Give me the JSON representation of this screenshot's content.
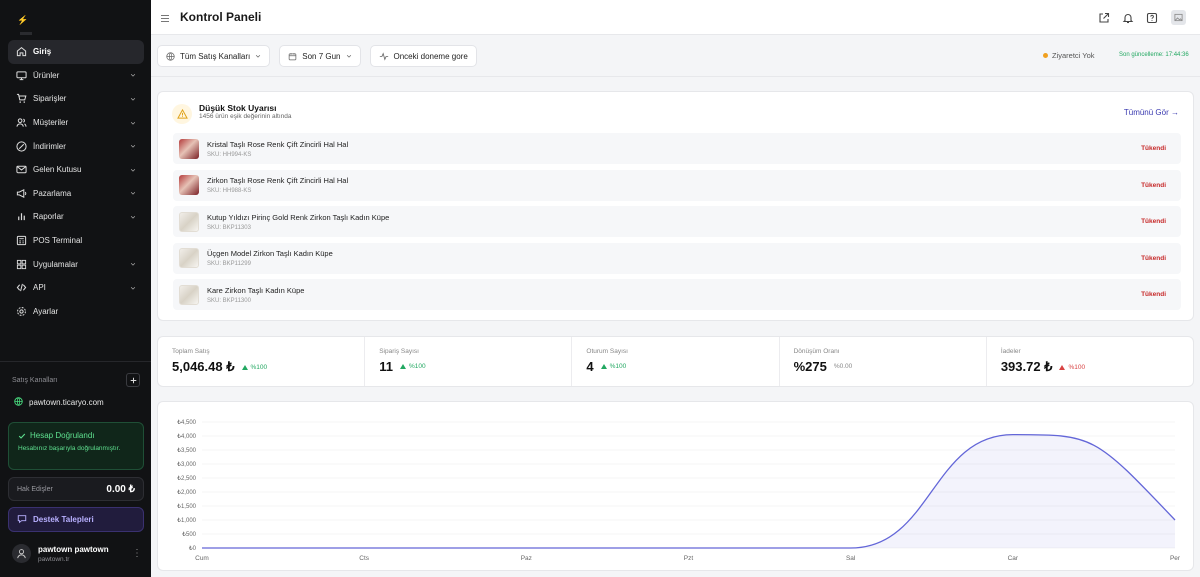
{
  "sidebar": {
    "nav": [
      {
        "label": "Giriş",
        "icon": "home-icon",
        "active": true,
        "chevron": false
      },
      {
        "label": "Ürünler",
        "icon": "monitor-icon",
        "chevron": true
      },
      {
        "label": "Siparişler",
        "icon": "cart-icon",
        "chevron": true
      },
      {
        "label": "Müşteriler",
        "icon": "users-icon",
        "chevron": true
      },
      {
        "label": "İndirimler",
        "icon": "discount-icon",
        "chevron": true
      },
      {
        "label": "Gelen Kutusu",
        "icon": "mail-icon",
        "chevron": true
      },
      {
        "label": "Pazarlama",
        "icon": "megaphone-icon",
        "chevron": true
      },
      {
        "label": "Raporlar",
        "icon": "bar-chart-icon",
        "chevron": true
      },
      {
        "label": "POS Terminal",
        "icon": "pos-icon",
        "chevron": false
      },
      {
        "label": "Uygulamalar",
        "icon": "grid-icon",
        "chevron": true
      },
      {
        "label": "API",
        "icon": "code-icon",
        "chevron": true
      },
      {
        "label": "Ayarlar",
        "icon": "gear-icon",
        "chevron": false
      }
    ],
    "channels_title": "Satış Kanalları",
    "channel": "pawtown.ticaryo.com",
    "verified_title": "Hesap Doğrulandı",
    "verified_text": "Hesabınız başarıyla doğrulanmıştır.",
    "earnings_label": "Hak Edişler",
    "earnings_value": "0.00 ₺",
    "support_label": "Destek Talepleri",
    "user_name": "pawtown pawtown",
    "user_email": "pawtown.tr"
  },
  "header": {
    "title": "Kontrol Paneli"
  },
  "filters": {
    "channels": "Tüm Satış Kanalları",
    "range": "Son 7 Gun",
    "compare": "Onceki doneme gore",
    "visitors": "Ziyaretci Yok",
    "updated": "Son güncelleme: 17:44:36"
  },
  "stock": {
    "title": "Düşük Stok Uyarısı",
    "subtitle": "1456 ürün eşik değerinin altında",
    "see_all": "Tümünü Gör →",
    "items": [
      {
        "name": "Kristal Taşlı Rose Renk Çift Zincirli Hal Hal",
        "sku": "SKU: HH994-KS",
        "status": "Tükendi",
        "thumb": "dark"
      },
      {
        "name": "Zirkon Taşlı Rose Renk Çift Zincirli Hal Hal",
        "sku": "SKU: HH988-KS",
        "status": "Tükendi",
        "thumb": "dark"
      },
      {
        "name": "Kutup Yıldızı Pirinç Gold Renk Zirkon Taşlı Kadın Küpe",
        "sku": "SKU: BKP11303",
        "status": "Tükendi",
        "thumb": "light"
      },
      {
        "name": "Üçgen Model Zirkon Taşlı Kadın Küpe",
        "sku": "SKU: BKP11299",
        "status": "Tükendi",
        "thumb": "light"
      },
      {
        "name": "Kare Zirkon Taşlı Kadın Küpe",
        "sku": "SKU: BKP11300",
        "status": "Tükendi",
        "thumb": "light"
      }
    ]
  },
  "stats": [
    {
      "label": "Toplam Satış",
      "value": "5,046.48 ₺",
      "change": "%100",
      "trend": "up"
    },
    {
      "label": "Sipariş Sayısı",
      "value": "11",
      "change": "%100",
      "trend": "up"
    },
    {
      "label": "Oturum Sayısı",
      "value": "4",
      "change": "%100",
      "trend": "up"
    },
    {
      "label": "Dönüşüm Oranı",
      "value": "%275",
      "change": "%0.00",
      "trend": "flat"
    },
    {
      "label": "İadeler",
      "value": "393.72 ₺",
      "change": "%100",
      "trend": "down"
    }
  ],
  "colors": {
    "accent": "#6366d8",
    "positive": "#22a861",
    "negative": "#d84343"
  },
  "chart_data": {
    "type": "area",
    "categories": [
      "Cum",
      "Cts",
      "Paz",
      "Pzt",
      "Sal",
      "Car",
      "Per"
    ],
    "values": [
      0,
      0,
      0,
      0,
      0,
      4050,
      1000
    ],
    "y_ticks": [
      "₺0",
      "₺500",
      "₺1,000",
      "₺1,500",
      "₺2,000",
      "₺2,500",
      "₺3,000",
      "₺3,500",
      "₺4,000",
      "₺4,500"
    ],
    "ylim": [
      0,
      4500
    ],
    "grid": true
  }
}
